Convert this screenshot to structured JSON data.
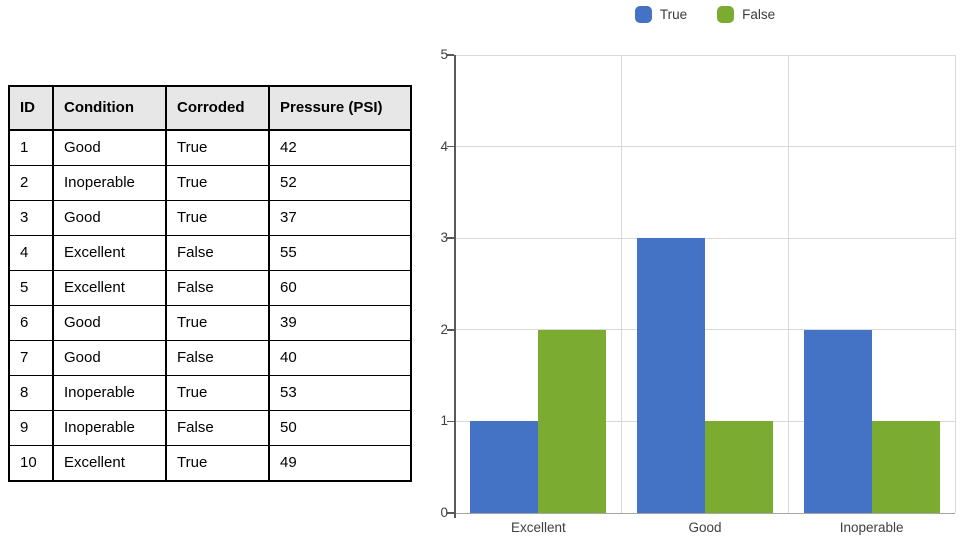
{
  "table": {
    "headers": [
      "ID",
      "Condition",
      "Corroded",
      "Pressure (PSI)"
    ],
    "rows": [
      [
        "1",
        "Good",
        "True",
        "42"
      ],
      [
        "2",
        "Inoperable",
        "True",
        "52"
      ],
      [
        "3",
        "Good",
        "True",
        "37"
      ],
      [
        "4",
        "Excellent",
        "False",
        "55"
      ],
      [
        "5",
        "Excellent",
        "False",
        "60"
      ],
      [
        "6",
        "Good",
        "True",
        "39"
      ],
      [
        "7",
        "Good",
        "False",
        "40"
      ],
      [
        "8",
        "Inoperable",
        "True",
        "53"
      ],
      [
        "9",
        "Inoperable",
        "False",
        "50"
      ],
      [
        "10",
        "Excellent",
        "True",
        "49"
      ]
    ]
  },
  "chart_data": {
    "type": "bar",
    "categories": [
      "Excellent",
      "Good",
      "Inoperable"
    ],
    "series": [
      {
        "name": "True",
        "color": "#4472C4",
        "values": [
          1,
          3,
          2
        ]
      },
      {
        "name": "False",
        "color": "#7BAB31",
        "values": [
          2,
          1,
          1
        ]
      }
    ],
    "title": "",
    "xlabel": "",
    "ylabel": "",
    "ylim": [
      0,
      5
    ],
    "y_tick_step": 1,
    "grid": true,
    "legend_position": "top",
    "colors": {
      "gridline": "#D9D9D9",
      "zero_line": "#A6A6A6",
      "axis": "#595959",
      "tick_label": "#404040"
    }
  }
}
